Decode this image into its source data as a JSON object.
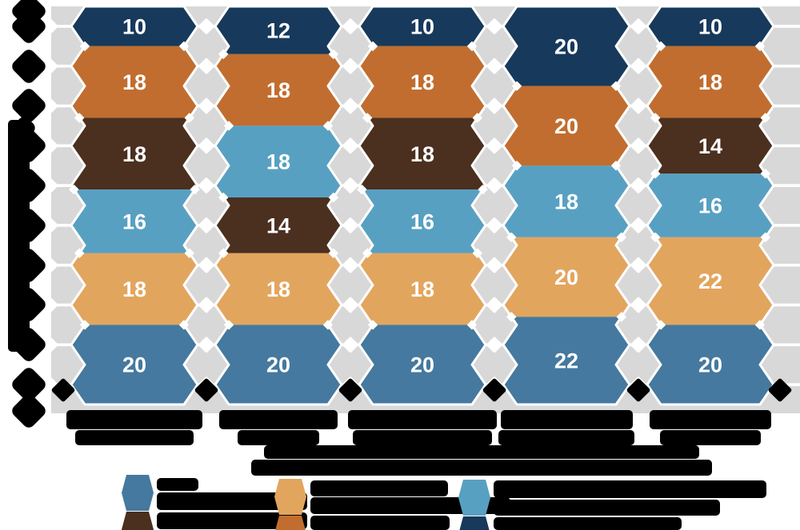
{
  "figure": {
    "background": "#ffffff",
    "plot_background": "#d8d8d8",
    "gridline_color": "#ffffff",
    "labels_redacted": true,
    "redaction_note": "Axis title, axis tick labels, category labels, caption and legend labels are blacked-out in the source image"
  },
  "chart_data": {
    "type": "bar",
    "variant": "100-percent-stacked-chevron-columns",
    "orientation": "vertical",
    "axis_max": 100,
    "gridline_step": 10,
    "categories_redacted": true,
    "categories": [
      "",
      "",
      "",
      "",
      ""
    ],
    "colors": {
      "navy": "#17395b",
      "orange": "#c16d2f",
      "brown": "#4b2f1f",
      "lightblue": "#58a0c2",
      "tan": "#e2a55e",
      "steel": "#45799f"
    },
    "value_label_color": "#ffffff",
    "legend_position": "bottom",
    "columns": [
      {
        "segments": [
          {
            "color": "navy",
            "value": 10
          },
          {
            "color": "orange",
            "value": 18
          },
          {
            "color": "brown",
            "value": 18
          },
          {
            "color": "lightblue",
            "value": 16
          },
          {
            "color": "tan",
            "value": 18
          },
          {
            "color": "steel",
            "value": 20
          }
        ]
      },
      {
        "segments": [
          {
            "color": "navy",
            "value": 12
          },
          {
            "color": "orange",
            "value": 18
          },
          {
            "color": "lightblue",
            "value": 18
          },
          {
            "color": "brown",
            "value": 14
          },
          {
            "color": "tan",
            "value": 18
          },
          {
            "color": "steel",
            "value": 20
          }
        ]
      },
      {
        "segments": [
          {
            "color": "navy",
            "value": 10
          },
          {
            "color": "orange",
            "value": 18
          },
          {
            "color": "brown",
            "value": 18
          },
          {
            "color": "lightblue",
            "value": 16
          },
          {
            "color": "tan",
            "value": 18
          },
          {
            "color": "steel",
            "value": 20
          }
        ]
      },
      {
        "segments": [
          {
            "color": "navy",
            "value": 20
          },
          {
            "color": "orange",
            "value": 20
          },
          {
            "color": "lightblue",
            "value": 18
          },
          {
            "color": "tan",
            "value": 20
          },
          {
            "color": "steel",
            "value": 22
          }
        ]
      },
      {
        "segments": [
          {
            "color": "navy",
            "value": 10
          },
          {
            "color": "orange",
            "value": 18
          },
          {
            "color": "brown",
            "value": 14
          },
          {
            "color": "lightblue",
            "value": 16
          },
          {
            "color": "tan",
            "value": 22
          },
          {
            "color": "steel",
            "value": 20
          }
        ]
      }
    ]
  },
  "legend": {
    "labels_redacted": true,
    "entries": [
      {
        "color": "steel"
      },
      {
        "color": "brown"
      },
      {
        "color": "tan"
      },
      {
        "color": "orange"
      },
      {
        "color": "lightblue"
      },
      {
        "color": "navy"
      }
    ]
  }
}
